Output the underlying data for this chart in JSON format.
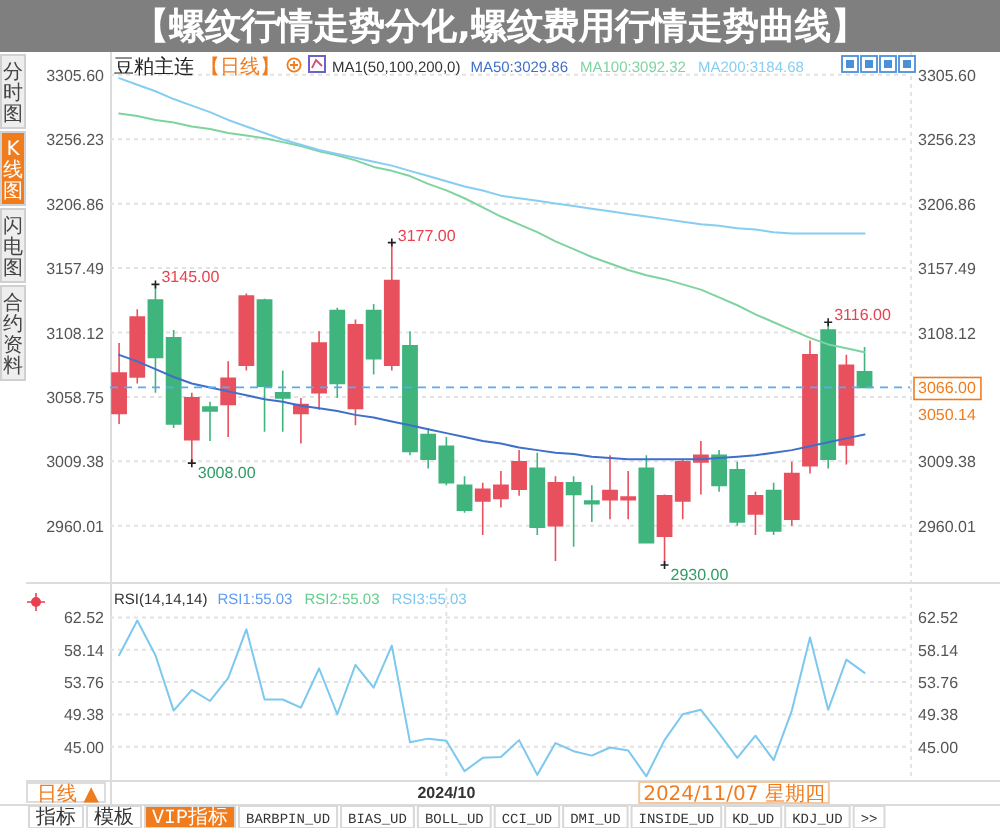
{
  "chart_data": [
    {
      "type": "candlestick",
      "title": "【螺纹行情走势分化,螺纹费用行情走势曲线】",
      "subtitle": "豆粕主连",
      "legend_title": "MA1(50,100,200,0)",
      "legend": "top",
      "categories": [
        null,
        null,
        null,
        null,
        null,
        null,
        null,
        null,
        null,
        null,
        null,
        null,
        null,
        null,
        null,
        null,
        null,
        null,
        null,
        null,
        null,
        null,
        null,
        null,
        null,
        null,
        null,
        null,
        null,
        null,
        null,
        null,
        null,
        null,
        null,
        null,
        null,
        null,
        null,
        null,
        null,
        null
      ],
      "ohlc": [
        [
          3046,
          3100,
          3038,
          3077
        ],
        [
          3074,
          3126,
          3069,
          3120
        ],
        [
          3133,
          3145,
          3062,
          3089
        ],
        [
          3104,
          3110,
          3035,
          3038
        ],
        [
          3026,
          3062,
          3008,
          3058
        ],
        [
          3051,
          3055,
          3025,
          3048
        ],
        [
          3053,
          3086,
          3028,
          3073
        ],
        [
          3083,
          3138,
          3079,
          3136
        ],
        [
          3133,
          3134,
          3032,
          3067
        ],
        [
          3062,
          3079,
          3032,
          3058
        ],
        [
          3046,
          3058,
          3023,
          3053
        ],
        [
          3062,
          3109,
          3049,
          3100
        ],
        [
          3125,
          3127,
          3058,
          3069
        ],
        [
          3050,
          3118,
          3037,
          3114
        ],
        [
          3125,
          3130,
          3076,
          3088
        ],
        [
          3083,
          3177,
          3079,
          3148
        ],
        [
          3098,
          3109,
          3014,
          3017
        ],
        [
          3030,
          3035,
          3004,
          3011
        ],
        [
          3021,
          3028,
          2991,
          2993
        ],
        [
          2991,
          2998,
          2970,
          2972
        ],
        [
          2979,
          2993,
          2953,
          2988
        ],
        [
          2981,
          3002,
          2974,
          2991
        ],
        [
          2988,
          3018,
          2983,
          3009
        ],
        [
          3004,
          3016,
          2953,
          2959
        ],
        [
          2960,
          2998,
          2933,
          2993
        ],
        [
          2993,
          2998,
          2944,
          2984
        ],
        [
          2979,
          2991,
          2963,
          2977
        ],
        [
          2980,
          3014,
          2965,
          2987
        ],
        [
          2980,
          3002,
          2965,
          2982
        ],
        [
          3004,
          3014,
          2947,
          2947
        ],
        [
          2952,
          2984,
          2930,
          2983
        ],
        [
          2979,
          3011,
          2965,
          3009
        ],
        [
          3009,
          3025,
          2984,
          3014
        ],
        [
          3014,
          3018,
          2986,
          2991
        ],
        [
          3003,
          3009,
          2960,
          2963
        ],
        [
          2969,
          2986,
          2953,
          2983
        ],
        [
          2987,
          2993,
          2953,
          2956
        ],
        [
          2965,
          3009,
          2960,
          3000
        ],
        [
          3006,
          3102,
          3000,
          3091
        ],
        [
          3110,
          3116,
          3004,
          3011
        ],
        [
          3022,
          3091,
          3007,
          3083
        ],
        [
          3078,
          3097,
          3066,
          3066
        ]
      ],
      "colors": [
        "#e9505e",
        "#e9505e",
        "#3fb47c",
        "#3fb47c",
        "#e9505e",
        "#3fb47c",
        "#e9505e",
        "#e9505e",
        "#3fb47c",
        "#3fb47c",
        "#e9505e",
        "#e9505e",
        "#3fb47c",
        "#e9505e",
        "#3fb47c",
        "#e9505e",
        "#3fb47c",
        "#3fb47c",
        "#3fb47c",
        "#3fb47c",
        "#e9505e",
        "#e9505e",
        "#e9505e",
        "#3fb47c",
        "#e9505e",
        "#3fb47c",
        "#3fb47c",
        "#e9505e",
        "#e9505e",
        "#3fb47c",
        "#e9505e",
        "#e9505e",
        "#e9505e",
        "#3fb47c",
        "#3fb47c",
        "#e9505e",
        "#3fb47c",
        "#e9505e",
        "#e9505e",
        "#3fb47c",
        "#e9505e",
        "#3fb47c"
      ],
      "series": [
        {
          "name": "MA50:3029.86",
          "type": "line",
          "color": "#3f6fc8",
          "values": [
            3091,
            3086,
            3080,
            3074,
            3069,
            3066,
            3063,
            3060,
            3057,
            3055,
            3052,
            3050,
            3048,
            3045,
            3043,
            3040,
            3037,
            3034,
            3031,
            3028,
            3025,
            3023,
            3020,
            3018,
            3016,
            3015,
            3013,
            3012,
            3011,
            3011,
            3011,
            3011,
            3011,
            3012,
            3013,
            3014,
            3016,
            3018,
            3021,
            3024,
            3027,
            3030
          ]
        },
        {
          "name": "MA100:3092.32",
          "type": "line",
          "color": "#7fd3a0",
          "values": [
            3276,
            3274,
            3271,
            3269,
            3266,
            3264,
            3261,
            3259,
            3257,
            3254,
            3251,
            3247,
            3244,
            3240,
            3235,
            3232,
            3228,
            3222,
            3217,
            3211,
            3204,
            3197,
            3191,
            3185,
            3178,
            3172,
            3166,
            3161,
            3156,
            3152,
            3149,
            3145,
            3141,
            3135,
            3129,
            3122,
            3116,
            3110,
            3104,
            3099,
            3096,
            3093
          ]
        },
        {
          "name": "MA200:3184.68",
          "type": "line",
          "color": "#86cdf2",
          "values": [
            3303,
            3298,
            3293,
            3287,
            3282,
            3277,
            3271,
            3266,
            3261,
            3256,
            3252,
            3248,
            3245,
            3242,
            3239,
            3236,
            3232,
            3228,
            3224,
            3220,
            3217,
            3213,
            3211,
            3209,
            3207,
            3205,
            3203,
            3201,
            3199,
            3197,
            3195,
            3193,
            3191,
            3190,
            3188,
            3187,
            3185,
            3184,
            3184,
            3184,
            3184,
            3184
          ]
        }
      ],
      "ylim": [
        2920,
        3320
      ],
      "yticks": [
        2960.01,
        3009.38,
        3058.75,
        3108.12,
        3157.49,
        3206.86,
        3256.23,
        {
          "value": 3305.6,
          "label": "3305.60"
        }
      ],
      "y2lim": [
        2920,
        3320
      ],
      "y2ticks": [
        2960.01,
        3009.38,
        3108.12,
        3157.49,
        3206.86,
        3256.23,
        {
          "value": 3305.6,
          "label": "3305.60"
        }
      ],
      "grid": "y",
      "tick_labels": "y",
      "ref_lines": [
        {
          "axis": "y",
          "value": 3066,
          "label": "3066.00",
          "color": "#5aaaf0",
          "line_style": "dashed"
        }
      ],
      "annotations": [
        "【日线】",
        "3177.00",
        "3145.00",
        "3116.00",
        "3008.00",
        "2930.00",
        "3050.14",
        "分时图",
        "K线图",
        "闪电图",
        "合约资料"
      ]
    },
    {
      "type": "line",
      "legend_title": "RSI(14,14,14)",
      "legend": "top left",
      "categories": [
        null,
        null,
        null,
        null,
        null,
        null,
        null,
        null,
        null,
        null,
        null,
        null,
        null,
        null,
        null,
        null,
        null,
        null,
        "2024/10",
        null,
        null,
        null,
        null,
        null,
        null,
        null,
        null,
        null,
        null,
        null,
        null,
        null,
        null,
        null,
        null,
        null,
        null,
        null,
        null,
        null,
        null,
        null
      ],
      "series": [
        {
          "name": "RSI1:55.03",
          "color": "#5b9cf0",
          "values": [
            null,
            null,
            null,
            null,
            null,
            null,
            null,
            null,
            null,
            null,
            null,
            null,
            null,
            null,
            null,
            null,
            null,
            null,
            null,
            null,
            null,
            null,
            null,
            null,
            null,
            null,
            null,
            null,
            null,
            null,
            null,
            null,
            null,
            null,
            null,
            null,
            null,
            null,
            null,
            null,
            null,
            null
          ]
        },
        {
          "name": "RSI2:55.03",
          "color": "#5fcf8a",
          "values": [
            null,
            null,
            null,
            null,
            null,
            null,
            null,
            null,
            null,
            null,
            null,
            null,
            null,
            null,
            null,
            null,
            null,
            null,
            null,
            null,
            null,
            null,
            null,
            null,
            null,
            null,
            null,
            null,
            null,
            null,
            null,
            null,
            null,
            null,
            null,
            null,
            null,
            null,
            null,
            null,
            null,
            null
          ]
        },
        {
          "name": "RSI3:55.03",
          "color": "#7cc8ee",
          "values": [
            57.4,
            62.1,
            57.4,
            49.9,
            52.7,
            51.2,
            54.3,
            60.9,
            51.4,
            51.4,
            50.3,
            55.6,
            49.4,
            56.1,
            53.0,
            58.7,
            45.6,
            46.1,
            45.8,
            41.7,
            43.5,
            43.6,
            45.9,
            41.2,
            45.5,
            44.4,
            43.8,
            44.9,
            44.5,
            41.0,
            45.9,
            49.4,
            50.0,
            46.8,
            43.5,
            46.5,
            43.2,
            49.9,
            59.8,
            50.0,
            56.8,
            55.0
          ]
        }
      ],
      "ylim": [
        40.5,
        66.5
      ],
      "yticks": [
        {
          "value": 45,
          "label": "45.00"
        },
        49.38,
        53.76,
        58.14,
        62.52
      ],
      "y2lim": [
        40.5,
        66.5
      ],
      "y2ticks": [
        {
          "value": 45,
          "label": "45.00"
        },
        49.38,
        53.76,
        58.14,
        62.52
      ],
      "grid": true,
      "annotations": [
        "日线 ▲",
        "2024/11/07 星期四",
        "指标",
        "模板",
        "VIP指标",
        "BARBPIN_UD",
        "BIAS_UD",
        "BOLL_UD",
        "CCI_UD",
        "DMI_UD",
        "INSIDE_UD",
        "KD_UD",
        "KDJ_UD",
        ">>"
      ]
    }
  ]
}
